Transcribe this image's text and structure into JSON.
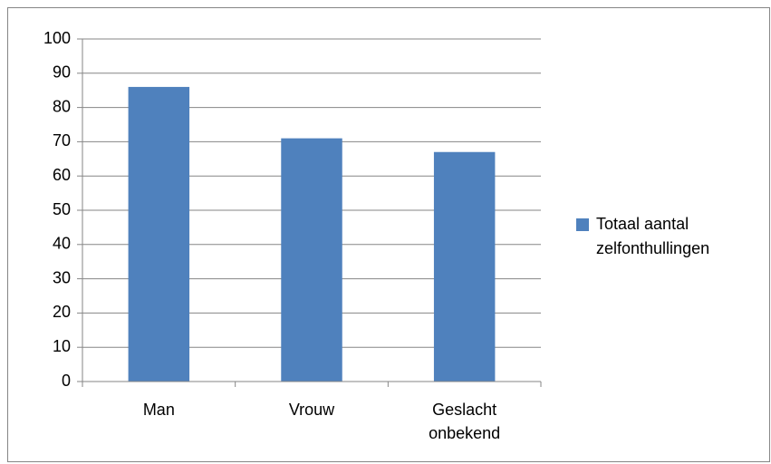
{
  "chart_data": {
    "type": "bar",
    "categories": [
      "Man",
      "Vrouw",
      "Geslacht onbekend"
    ],
    "series": [
      {
        "name": "Totaal aantal zelfonthullingen",
        "color": "#4f81bd",
        "values": [
          86,
          71,
          67
        ]
      }
    ],
    "ylim": [
      0,
      100
    ],
    "yticks": [
      0,
      10,
      20,
      30,
      40,
      50,
      60,
      70,
      80,
      90,
      100
    ],
    "grid": true,
    "legend": "right"
  }
}
